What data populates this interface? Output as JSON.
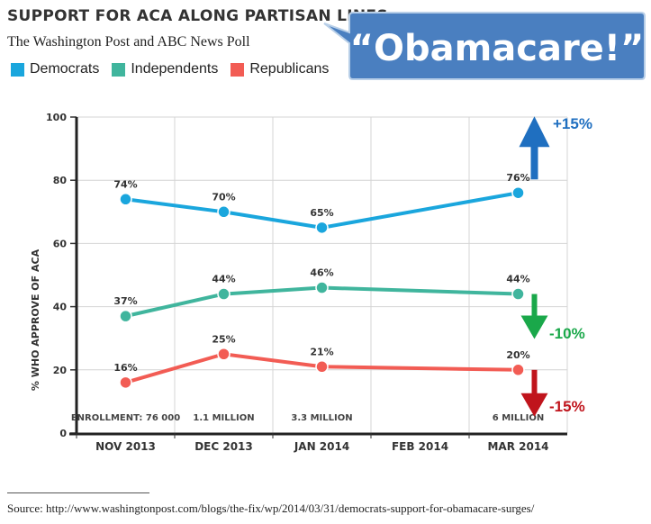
{
  "header": {
    "title": "SUPPORT FOR ACA ALONG PARTISAN LINES",
    "subtitle": "The Washington Post and ABC News Poll"
  },
  "callout": {
    "text": "“Obamacare!”",
    "fill_color": "#4a7fc0",
    "border_color": "#b8cfe8"
  },
  "footnote": {
    "text": "Source: http://www.washingtonpost.com/blogs/the-fix/wp/2014/03/31/democrats-support-for-obamacare-surges/"
  },
  "chart_data": {
    "type": "line",
    "categories": [
      "NOV 2013",
      "DEC 2013",
      "JAN 2014",
      "FEB 2014",
      "MAR 2014"
    ],
    "ylabel": "% WHO APPROVE OF ACA",
    "ylim": [
      0,
      100
    ],
    "yticks": [
      "0",
      "20",
      "40",
      "60",
      "80",
      "100"
    ],
    "grid": true,
    "legend_position": "top-left",
    "series": [
      {
        "name": "Democrats",
        "color": "#1aa6dd",
        "values": [
          74,
          70,
          65,
          null,
          76
        ],
        "labels": [
          "74%",
          "70%",
          "65%",
          "",
          "76%"
        ]
      },
      {
        "name": "Independents",
        "color": "#40b59d",
        "values": [
          37,
          44,
          46,
          null,
          44
        ],
        "labels": [
          "37%",
          "44%",
          "46%",
          "",
          "44%"
        ]
      },
      {
        "name": "Republicans",
        "color": "#f25c54",
        "values": [
          16,
          25,
          21,
          null,
          20
        ],
        "labels": [
          "16%",
          "25%",
          "21%",
          "",
          "20%"
        ]
      }
    ],
    "enrollment_labels": [
      "ENROLLMENT: 76 000",
      "1.1 MILLION",
      "3.3 MILLION",
      "",
      "6 MILLION"
    ],
    "annotations": [
      {
        "text": "+15%",
        "direction": "up",
        "color": "#1f6fc0"
      },
      {
        "text": "-10%",
        "direction": "down",
        "color": "#1aa84a"
      },
      {
        "text": "-15%",
        "direction": "down",
        "color": "#c0141c"
      }
    ]
  }
}
